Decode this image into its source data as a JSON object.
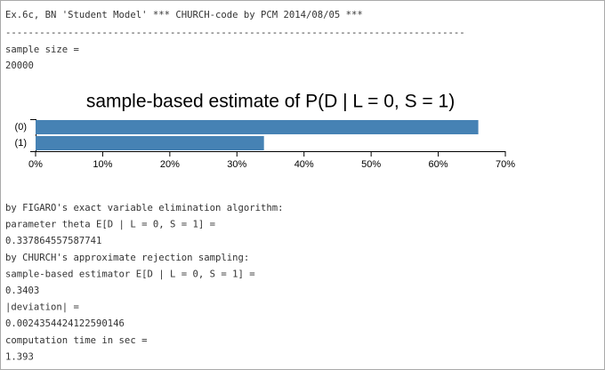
{
  "console": {
    "lines_before": [
      "Ex.6c, BN 'Student Model' *** CHURCH-code by PCM 2014/08/05 ***",
      "---------------------------------------------------------------------------------",
      "sample size =",
      "20000"
    ],
    "lines_after": [
      "by FIGARO's exact variable elimination algorithm:",
      "parameter theta E[D | L = 0, S = 1] =",
      "0.337864557587741",
      "by CHURCH's approximate rejection sampling:",
      "sample-based estimator E[D | L = 0, S = 1] =",
      "0.3403",
      "|deviation| =",
      "0.0024354424122590146",
      "computation time in sec =",
      "1.393"
    ]
  },
  "chart_data": {
    "type": "hbar",
    "title": "sample-based estimate of P(D | L = 0, S = 1)",
    "categories": [
      "(0)",
      "(1)"
    ],
    "values": [
      65.97,
      34.03
    ],
    "color": "#4682b4",
    "xlim": [
      0,
      70
    ],
    "xticks": [
      {
        "value": 0,
        "label": "0%"
      },
      {
        "value": 10,
        "label": "10%"
      },
      {
        "value": 20,
        "label": "20%"
      },
      {
        "value": 30,
        "label": "30%"
      },
      {
        "value": 40,
        "label": "40%"
      },
      {
        "value": 50,
        "label": "50%"
      },
      {
        "value": 60,
        "label": "60%"
      },
      {
        "value": 70,
        "label": "70%"
      }
    ]
  }
}
